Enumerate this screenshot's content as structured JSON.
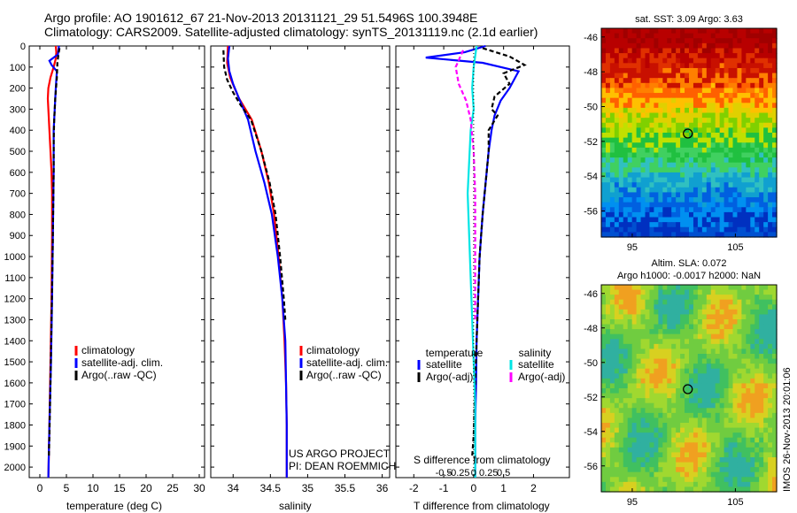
{
  "header": {
    "line1": "Argo profile: AO 1901612_67 21-Nov-2013 20131121_29 51.5496S 100.3948E",
    "line2": "Climatology: CARS2009. Satellite-adjusted climatology: synTS_20131119.nc (2.1d earlier)"
  },
  "colors": {
    "climatology": "#ff0000",
    "satellite": "#0000ff",
    "argo": "#000000",
    "sal_satellite": "#00e5e5",
    "sal_argo": "#ff00ff"
  },
  "chart_data": [
    {
      "type": "line",
      "id": "temperature",
      "xlabel": "temperature (deg C)",
      "xlim": [
        -2,
        31
      ],
      "ylim": [
        0,
        2050
      ],
      "x_ticks": [
        0,
        5,
        10,
        15,
        20,
        25,
        30
      ],
      "y_ticks": [
        0,
        100,
        200,
        300,
        400,
        500,
        600,
        700,
        800,
        900,
        1000,
        1100,
        1200,
        1300,
        1400,
        1500,
        1600,
        1700,
        1800,
        1900,
        2000
      ],
      "legend": [
        "climatology",
        "satellite-adj. clim.",
        "Argo(..raw -QC)"
      ],
      "series": [
        {
          "name": "climatology",
          "color": "#ff0000",
          "points": [
            [
              3.0,
              0
            ],
            [
              3.1,
              30
            ],
            [
              3.0,
              60
            ],
            [
              2.6,
              100
            ],
            [
              2.0,
              150
            ],
            [
              1.6,
              200
            ],
            [
              1.5,
              250
            ],
            [
              1.6,
              300
            ],
            [
              1.8,
              400
            ],
            [
              2.0,
              500
            ],
            [
              2.2,
              600
            ],
            [
              2.3,
              700
            ],
            [
              2.3,
              900
            ],
            [
              2.2,
              1200
            ],
            [
              2.0,
              1500
            ],
            [
              1.8,
              1800
            ],
            [
              1.6,
              2050
            ]
          ]
        },
        {
          "name": "satellite-adj. clim.",
          "color": "#0000ff",
          "points": [
            [
              3.6,
              0
            ],
            [
              3.4,
              40
            ],
            [
              1.8,
              70
            ],
            [
              2.2,
              90
            ],
            [
              3.2,
              120
            ],
            [
              3.0,
              200
            ],
            [
              2.8,
              300
            ],
            [
              2.6,
              400
            ],
            [
              2.6,
              600
            ],
            [
              2.5,
              800
            ],
            [
              2.4,
              1000
            ],
            [
              2.3,
              1200
            ],
            [
              2.1,
              1500
            ],
            [
              1.8,
              1800
            ],
            [
              1.6,
              2050
            ]
          ]
        },
        {
          "name": "Argo(..raw -QC)",
          "color": "#000000",
          "points": [
            [
              3.7,
              10
            ],
            [
              3.5,
              40
            ],
            [
              3.3,
              80
            ],
            [
              3.2,
              150
            ],
            [
              2.9,
              250
            ],
            [
              2.7,
              350
            ],
            [
              2.6,
              450
            ],
            [
              2.6,
              600
            ],
            [
              2.5,
              800
            ],
            [
              2.4,
              1000
            ],
            [
              2.2,
              1300
            ],
            [
              2.0,
              1600
            ],
            [
              1.8,
              1850
            ],
            [
              1.7,
              1950
            ]
          ]
        }
      ]
    },
    {
      "type": "line",
      "id": "salinity",
      "xlabel": "salinity",
      "xlim": [
        33.7,
        36.1
      ],
      "ylim": [
        0,
        2050
      ],
      "x_ticks": [
        34,
        34.5,
        35,
        35.5,
        36
      ],
      "legend": [
        "climatology",
        "satellite-adj. clim.",
        "Argo(..raw -QC)"
      ],
      "annotation": [
        "US ARGO PROJECT",
        "PI: DEAN ROEMMICH"
      ],
      "series": [
        {
          "name": "climatology",
          "color": "#ff0000",
          "points": [
            [
              33.93,
              0
            ],
            [
              33.92,
              80
            ],
            [
              33.96,
              150
            ],
            [
              34.02,
              200
            ],
            [
              34.08,
              250
            ],
            [
              34.25,
              350
            ],
            [
              34.38,
              500
            ],
            [
              34.48,
              650
            ],
            [
              34.55,
              800
            ],
            [
              34.61,
              1000
            ],
            [
              34.66,
              1200
            ],
            [
              34.69,
              1400
            ],
            [
              34.71,
              1600
            ],
            [
              34.72,
              1800
            ],
            [
              34.72,
              2050
            ]
          ]
        },
        {
          "name": "satellite-adj. clim.",
          "color": "#0000ff",
          "points": [
            [
              33.95,
              0
            ],
            [
              33.93,
              60
            ],
            [
              33.95,
              120
            ],
            [
              34.0,
              180
            ],
            [
              34.08,
              250
            ],
            [
              34.2,
              350
            ],
            [
              34.3,
              500
            ],
            [
              34.42,
              650
            ],
            [
              34.52,
              800
            ],
            [
              34.6,
              1000
            ],
            [
              34.66,
              1200
            ],
            [
              34.7,
              1400
            ],
            [
              34.71,
              1600
            ],
            [
              34.72,
              1800
            ],
            [
              34.72,
              2050
            ]
          ]
        },
        {
          "name": "Argo(..raw -QC)",
          "color": "#000000",
          "points": [
            [
              33.87,
              20
            ],
            [
              33.88,
              100
            ],
            [
              33.92,
              160
            ],
            [
              34.0,
              220
            ],
            [
              34.1,
              280
            ],
            [
              34.24,
              350
            ],
            [
              34.38,
              500
            ],
            [
              34.49,
              650
            ],
            [
              34.57,
              800
            ],
            [
              34.63,
              1000
            ],
            [
              34.68,
              1200
            ],
            [
              34.7,
              1300
            ]
          ]
        }
      ]
    },
    {
      "type": "line",
      "id": "difference",
      "xlabel": "T difference from climatology",
      "top_xlabel": "S difference from climatology",
      "xlim": [
        -2.6,
        3.2
      ],
      "ylim": [
        0,
        2050
      ],
      "x_ticks": [
        -2,
        -1,
        0,
        1,
        2
      ],
      "s_ticks": [
        "-0.5",
        "-0.25",
        "0",
        "0.25",
        "0.5"
      ],
      "legend_titles": [
        "temperature",
        "salinity"
      ],
      "legend": [
        "satellite",
        "Argo(-adj)",
        "satellite",
        "Argo(-adj)"
      ],
      "series": [
        {
          "name": "T satellite",
          "color": "#0000ff",
          "points": [
            [
              0.4,
              0
            ],
            [
              -0.3,
              30
            ],
            [
              -1.6,
              55
            ],
            [
              0.3,
              80
            ],
            [
              1.5,
              120
            ],
            [
              1.2,
              200
            ],
            [
              0.9,
              260
            ],
            [
              0.7,
              330
            ],
            [
              0.6,
              400
            ],
            [
              0.5,
              500
            ],
            [
              0.4,
              650
            ],
            [
              0.3,
              800
            ],
            [
              0.2,
              1000
            ],
            [
              0.15,
              1200
            ],
            [
              0.1,
              1400
            ],
            [
              0.08,
              1600
            ],
            [
              0.05,
              1800
            ],
            [
              0.05,
              2050
            ]
          ]
        },
        {
          "name": "T Argo(-adj)",
          "color": "#000000",
          "points": [
            [
              0.3,
              10
            ],
            [
              1.2,
              50
            ],
            [
              1.7,
              90
            ],
            [
              1.0,
              130
            ],
            [
              1.2,
              180
            ],
            [
              0.7,
              240
            ],
            [
              0.6,
              300
            ],
            [
              0.8,
              330
            ],
            [
              0.5,
              400
            ],
            [
              0.5,
              500
            ],
            [
              0.4,
              650
            ],
            [
              0.3,
              800
            ],
            [
              0.2,
              1000
            ],
            [
              0.15,
              1200
            ],
            [
              0.1,
              1400
            ],
            [
              0.05,
              1600
            ],
            [
              0.0,
              1850
            ],
            [
              -0.05,
              1950
            ]
          ]
        },
        {
          "name": "S satellite",
          "color": "#00e5e5",
          "points": [
            [
              0.1,
              0
            ],
            [
              0.0,
              100
            ],
            [
              -0.05,
              200
            ],
            [
              0.0,
              300
            ],
            [
              -0.1,
              400
            ],
            [
              -0.15,
              550
            ],
            [
              -0.2,
              700
            ],
            [
              -0.15,
              900
            ],
            [
              -0.1,
              1100
            ],
            [
              -0.05,
              1300
            ],
            [
              0.0,
              1500
            ],
            [
              0.05,
              1700
            ],
            [
              0.05,
              2050
            ]
          ]
        },
        {
          "name": "S Argo(-adj)",
          "color": "#ff00ff",
          "points": [
            [
              -0.35,
              20
            ],
            [
              -0.6,
              100
            ],
            [
              -0.5,
              180
            ],
            [
              -0.25,
              260
            ],
            [
              -0.1,
              350
            ],
            [
              0.0,
              500
            ],
            [
              0.05,
              700
            ],
            [
              0.05,
              900
            ],
            [
              0.05,
              1100
            ],
            [
              0.05,
              1300
            ]
          ]
        }
      ]
    },
    {
      "type": "heatmap",
      "id": "sst-map",
      "title": "sat. SST: 3.09 Argo: 3.63",
      "x_ticks": [
        95,
        105
      ],
      "y_ticks": [
        -46,
        -48,
        -50,
        -52,
        -54,
        -56
      ],
      "xlim": [
        92,
        109
      ],
      "ylim": [
        -57.5,
        -45.5
      ],
      "argo_position": [
        100.39,
        -51.55
      ]
    },
    {
      "type": "heatmap",
      "id": "sla-map",
      "title": "Altim. SLA: 0.072",
      "subtitle": "Argo h1000: -0.0017 h2000: NaN",
      "x_ticks": [
        95,
        105
      ],
      "y_ticks": [
        -46,
        -48,
        -50,
        -52,
        -54,
        -56
      ],
      "xlim": [
        92,
        109
      ],
      "ylim": [
        -57.5,
        -45.5
      ],
      "argo_position": [
        100.39,
        -51.55
      ]
    }
  ],
  "footer": {
    "stamp": "IMOS 26-Nov-2013 20:01:06"
  }
}
